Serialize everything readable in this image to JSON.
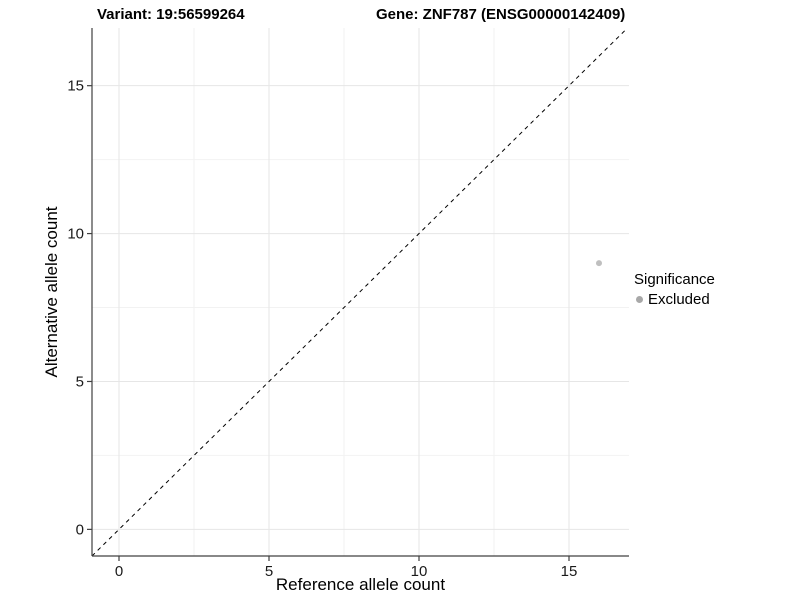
{
  "header": {
    "variant_title": "Variant: 19:56599264",
    "gene_title": "Gene: ZNF787 (ENSG00000142409)"
  },
  "legend": {
    "title": "Significance",
    "items": [
      {
        "label": "Excluded",
        "color": "#a8a8a8"
      }
    ]
  },
  "chart_data": {
    "type": "scatter",
    "title_left": "Variant: 19:56599264",
    "title_right": "Gene: ZNF787 (ENSG00000142409)",
    "xlabel": "Reference allele count",
    "ylabel": "Alternative allele count",
    "xlim": [
      -0.9,
      17
    ],
    "ylim": [
      -0.9,
      16.95
    ],
    "x_ticks": [
      0,
      5,
      10,
      15
    ],
    "y_ticks": [
      0,
      5,
      10,
      15
    ],
    "x_minor_ticks": [
      2.5,
      7.5,
      12.5
    ],
    "y_minor_ticks": [
      2.5,
      7.5,
      12.5
    ],
    "grid": true,
    "legend_title": "Significance",
    "legend_position": "right",
    "series": [
      {
        "name": "Excluded",
        "color": "#bfbfbf",
        "points": [
          {
            "x": 16,
            "y": 9
          }
        ]
      }
    ],
    "reference_line": {
      "type": "identity",
      "slope": 1,
      "intercept": 0,
      "dashed": true,
      "color": "#000000"
    }
  },
  "colors": {
    "grid_major": "#e6e6e6",
    "grid_minor": "#f2f2f2",
    "axis_line": "#404040",
    "tick_text": "#1a1a1a",
    "background": "#ffffff"
  }
}
